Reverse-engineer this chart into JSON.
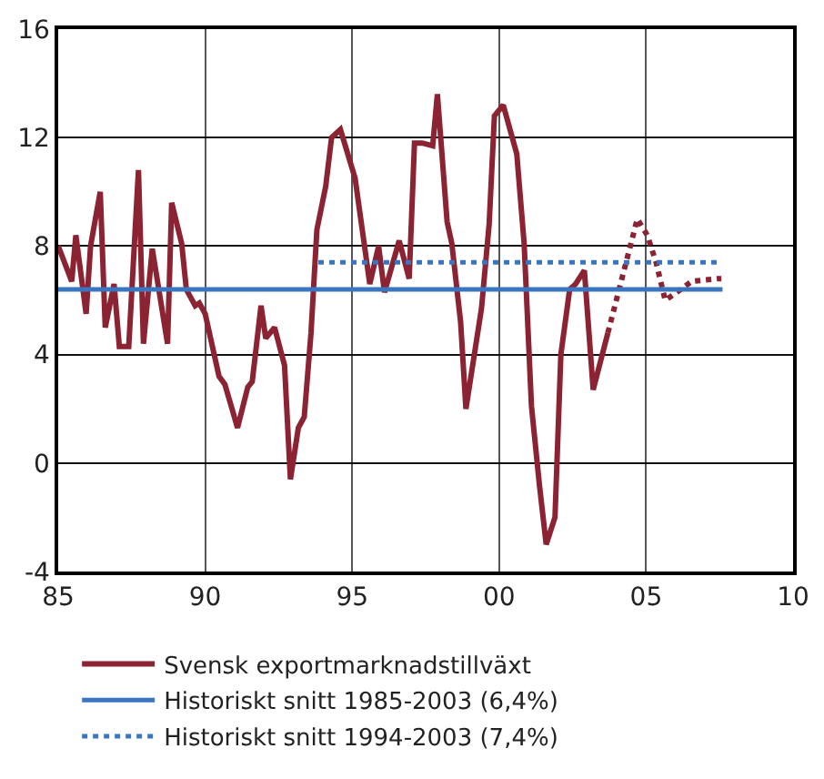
{
  "chart_data": {
    "type": "line",
    "xlim": [
      1985,
      2010
    ],
    "xticks": [
      {
        "value": 1985,
        "label": "85"
      },
      {
        "value": 1990,
        "label": "90"
      },
      {
        "value": 1995,
        "label": "95"
      },
      {
        "value": 2000,
        "label": "00"
      },
      {
        "value": 2005,
        "label": "05"
      },
      {
        "value": 2010,
        "label": "10"
      }
    ],
    "ylim": [
      -4,
      16
    ],
    "yticks": [
      -4,
      0,
      4,
      8,
      12,
      16
    ],
    "grid": true,
    "legend": "bottom",
    "marker": "none",
    "series": [
      {
        "name": "Svensk exportmarknadstillväxt",
        "color": "#8b2332",
        "line_style": "solid",
        "x": [
          1985.0,
          1985.46,
          1985.6,
          1985.95,
          1986.1,
          1986.43,
          1986.6,
          1986.9,
          1987.08,
          1987.4,
          1987.73,
          1987.9,
          1988.2,
          1988.72,
          1988.86,
          1989.2,
          1989.36,
          1989.66,
          1989.8,
          1990.0,
          1990.47,
          1990.67,
          1991.1,
          1991.45,
          1991.6,
          1991.9,
          1992.06,
          1992.36,
          1992.7,
          1992.9,
          1993.17,
          1993.37,
          1993.6,
          1993.8,
          1994.1,
          1994.3,
          1994.6,
          1995.1,
          1995.6,
          1995.9,
          1996.1,
          1996.6,
          1996.94,
          1997.12,
          1997.38,
          1997.74,
          1997.9,
          1998.23,
          1998.39,
          1998.69,
          1998.87,
          1999.4,
          1999.66,
          1999.84,
          2000.14,
          2000.6,
          2000.85,
          2001.1,
          2001.37,
          2001.6,
          2001.9,
          2002.1,
          2002.4,
          2002.6,
          2002.9,
          2003.2,
          2003.7
        ],
        "values": [
          8.0,
          6.7,
          8.4,
          5.5,
          8.0,
          10.0,
          5.0,
          6.6,
          4.3,
          4.3,
          10.8,
          4.4,
          7.9,
          4.4,
          9.6,
          8.1,
          6.4,
          5.8,
          5.9,
          5.5,
          3.2,
          2.9,
          1.3,
          2.8,
          3.0,
          5.8,
          4.6,
          5.0,
          3.6,
          -0.6,
          1.3,
          1.7,
          4.8,
          8.6,
          10.2,
          12.0,
          12.3,
          10.5,
          6.6,
          8.0,
          6.3,
          8.2,
          6.8,
          11.8,
          11.8,
          11.7,
          13.6,
          8.9,
          8.1,
          5.2,
          2.0,
          5.7,
          8.8,
          12.8,
          13.2,
          11.4,
          8.1,
          2.1,
          -0.8,
          -3.0,
          -2.0,
          4.0,
          6.4,
          6.6,
          7.1,
          2.7,
          4.8
        ]
      },
      {
        "color": "#8b2332",
        "line_style": "dotted",
        "x": [
          2003.7,
          2004.7,
          2005.04,
          2005.34,
          2005.65,
          2006.05,
          2006.55,
          2007.46,
          2007.56
        ],
        "values": [
          4.8,
          9.0,
          8.4,
          7.4,
          6.0,
          6.3,
          6.7,
          6.8,
          6.8
        ]
      },
      {
        "name": "Historiskt snitt 1985-2003 (6,4%)",
        "color": "#3a76c0",
        "line_style": "solid",
        "x": [
          1985,
          2007.6
        ],
        "values": [
          6.4,
          6.4
        ]
      },
      {
        "name": "Historiskt snitt 1994-2003 (7,4%)",
        "color": "#3a76c0",
        "line_style": "dotted",
        "x": [
          1993.85,
          2007.46
        ],
        "values": [
          7.4,
          7.4
        ]
      }
    ]
  }
}
